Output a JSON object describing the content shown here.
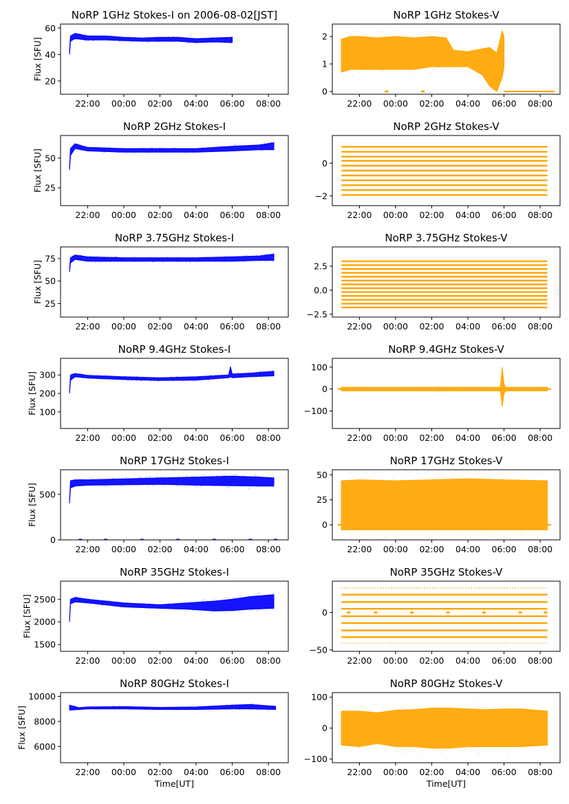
{
  "colors": {
    "stokes_i": "#0000ff",
    "stokes_v": "#ffa500",
    "frame": "#000000"
  },
  "chart_data": [
    {
      "id": "i1",
      "type": "scatter",
      "title": "NoRP 1GHz Stokes-I on 2006-08-02[JST]",
      "ylabel": "Flux [SFU]",
      "xlabel": "",
      "xlim": [
        20.5,
        33.1
      ],
      "ylim": [
        10,
        63
      ],
      "yticks": [
        20,
        40,
        60
      ],
      "xticks": [
        {
          "v": 22,
          "label": "22:00"
        },
        {
          "v": 24,
          "label": "00:00"
        },
        {
          "v": 26,
          "label": "02:00"
        },
        {
          "v": 28,
          "label": "04:00"
        },
        {
          "v": 30,
          "label": "06:00"
        },
        {
          "v": 32,
          "label": "08:00"
        }
      ],
      "x": [
        21.0,
        21.05,
        21.3,
        22,
        23,
        24,
        25,
        26,
        27,
        28,
        29,
        30.0
      ],
      "lower": [
        40,
        50,
        52,
        51,
        51,
        50.5,
        50,
        50,
        50,
        49,
        49.5,
        49
      ],
      "upper": [
        44,
        54,
        56,
        54,
        54,
        53,
        52.5,
        53,
        53,
        52,
        52.5,
        53
      ]
    },
    {
      "id": "v1",
      "type": "scatter",
      "title": "NoRP 1GHz Stokes-V",
      "ylabel": "",
      "xlabel": "",
      "xlim": [
        20.5,
        33.1
      ],
      "ylim": [
        -0.1,
        2.45
      ],
      "yticks": [
        0,
        1,
        2
      ],
      "xticks": [
        {
          "v": 22,
          "label": "22:00"
        },
        {
          "v": 24,
          "label": "00:00"
        },
        {
          "v": 26,
          "label": "02:00"
        },
        {
          "v": 28,
          "label": "04:00"
        },
        {
          "v": 30,
          "label": "06:00"
        },
        {
          "v": 32,
          "label": "08:00"
        }
      ],
      "x": [
        21.0,
        21.5,
        22,
        23,
        24,
        25,
        26,
        26.8,
        27.2,
        28,
        28.8,
        29.2,
        29.6,
        29.9,
        30.0
      ],
      "lower": [
        0.7,
        0.8,
        0.8,
        0.8,
        0.8,
        0.8,
        0.9,
        0.9,
        0.9,
        0.9,
        0.6,
        0.2,
        0.0,
        0.5,
        0.9
      ],
      "upper": [
        1.9,
        2.0,
        2.0,
        1.95,
        2.0,
        1.95,
        2.0,
        1.95,
        1.5,
        1.45,
        1.55,
        1.6,
        1.4,
        2.2,
        2.0
      ],
      "flat": [
        {
          "x0": 30.0,
          "x1": 32.8,
          "y": 0
        }
      ],
      "marks": [
        {
          "x": 23.5,
          "y": 0
        },
        {
          "x": 25.5,
          "y": 0
        }
      ]
    },
    {
      "id": "i2",
      "type": "scatter",
      "title": "NoRP 2GHz Stokes-I",
      "ylabel": "Flux [SFU]",
      "xlabel": "",
      "xlim": [
        20.5,
        33.1
      ],
      "ylim": [
        10,
        69
      ],
      "yticks": [
        25,
        50
      ],
      "xticks": [
        {
          "v": 22,
          "label": "22:00"
        },
        {
          "v": 24,
          "label": "00:00"
        },
        {
          "v": 26,
          "label": "02:00"
        },
        {
          "v": 28,
          "label": "04:00"
        },
        {
          "v": 30,
          "label": "06:00"
        },
        {
          "v": 32,
          "label": "08:00"
        }
      ],
      "x": [
        21.0,
        21.05,
        21.3,
        22,
        24,
        26,
        28,
        30,
        31.5,
        32.3
      ],
      "lower": [
        40,
        52,
        58,
        56,
        55,
        55,
        55,
        56,
        57,
        57
      ],
      "upper": [
        44,
        58,
        62,
        59,
        58,
        58,
        58,
        60,
        61,
        63
      ]
    },
    {
      "id": "v2",
      "type": "scatter",
      "title": "NoRP 2GHz Stokes-V",
      "ylabel": "",
      "xlabel": "",
      "xlim": [
        20.5,
        33.1
      ],
      "ylim": [
        -2.6,
        1.7
      ],
      "yticks": [
        -2,
        0
      ],
      "xticks": [
        {
          "v": 22,
          "label": "22:00"
        },
        {
          "v": 24,
          "label": "00:00"
        },
        {
          "v": 26,
          "label": "02:00"
        },
        {
          "v": 28,
          "label": "04:00"
        },
        {
          "v": 30,
          "label": "06:00"
        },
        {
          "v": 32,
          "label": "08:00"
        }
      ],
      "bands": [
        1.0,
        0.7,
        0.4,
        0.15,
        -0.15,
        -0.45,
        -0.75,
        -1.05,
        -1.35,
        -1.65,
        -1.95
      ],
      "band_x": [
        21.0,
        32.4
      ]
    },
    {
      "id": "i3",
      "type": "scatter",
      "title": "NoRP 3.75GHz Stokes-I",
      "ylabel": "Flux [SFU]",
      "xlabel": "",
      "xlim": [
        20.5,
        33.1
      ],
      "ylim": [
        10,
        88
      ],
      "yticks": [
        25,
        50,
        75
      ],
      "xticks": [
        {
          "v": 22,
          "label": "22:00"
        },
        {
          "v": 24,
          "label": "00:00"
        },
        {
          "v": 26,
          "label": "02:00"
        },
        {
          "v": 28,
          "label": "04:00"
        },
        {
          "v": 30,
          "label": "06:00"
        },
        {
          "v": 32,
          "label": "08:00"
        }
      ],
      "x": [
        21.0,
        21.05,
        21.3,
        22,
        24,
        26,
        28,
        30,
        31.5,
        32.3
      ],
      "lower": [
        60,
        70,
        74,
        72,
        72,
        72,
        72,
        72,
        73,
        73
      ],
      "upper": [
        64,
        76,
        79,
        77,
        76,
        76,
        76,
        77,
        78,
        80
      ]
    },
    {
      "id": "v3",
      "type": "scatter",
      "title": "NoRP 3.75GHz Stokes-V",
      "ylabel": "",
      "xlabel": "",
      "xlim": [
        20.5,
        33.1
      ],
      "ylim": [
        -2.8,
        4.5
      ],
      "yticks": [
        -2.5,
        0.0,
        2.5
      ],
      "xticks": [
        {
          "v": 22,
          "label": "22:00"
        },
        {
          "v": 24,
          "label": "00:00"
        },
        {
          "v": 26,
          "label": "02:00"
        },
        {
          "v": 28,
          "label": "04:00"
        },
        {
          "v": 30,
          "label": "06:00"
        },
        {
          "v": 32,
          "label": "08:00"
        }
      ],
      "bands": [
        3.0,
        2.6,
        2.2,
        1.8,
        1.4,
        1.0,
        0.6,
        0.2,
        -0.2,
        -0.6,
        -1.0,
        -1.4,
        -1.8
      ],
      "band_x": [
        21.0,
        32.4
      ]
    },
    {
      "id": "i4",
      "type": "scatter",
      "title": "NoRP 9.4GHz Stokes-I",
      "ylabel": "Flux [SFU]",
      "xlabel": "",
      "xlim": [
        20.5,
        33.1
      ],
      "ylim": [
        10,
        390
      ],
      "yticks": [
        100,
        200,
        300
      ],
      "xticks": [
        {
          "v": 22,
          "label": "22:00"
        },
        {
          "v": 24,
          "label": "00:00"
        },
        {
          "v": 26,
          "label": "02:00"
        },
        {
          "v": 28,
          "label": "04:00"
        },
        {
          "v": 30,
          "label": "06:00"
        },
        {
          "v": 32,
          "label": "08:00"
        }
      ],
      "x": [
        21.0,
        21.05,
        21.3,
        22,
        24,
        26,
        28,
        29.8,
        29.9,
        30.0,
        31,
        32.3
      ],
      "lower": [
        200,
        270,
        290,
        283,
        275,
        270,
        272,
        285,
        290,
        285,
        290,
        295
      ],
      "upper": [
        215,
        300,
        308,
        298,
        290,
        285,
        290,
        300,
        345,
        305,
        310,
        320
      ]
    },
    {
      "id": "v4",
      "type": "scatter",
      "title": "NoRP 9.4GHz Stokes-V",
      "ylabel": "",
      "xlabel": "",
      "xlim": [
        20.5,
        33.1
      ],
      "ylim": [
        -180,
        140
      ],
      "yticks": [
        -100,
        0,
        100
      ],
      "xticks": [
        {
          "v": 22,
          "label": "22:00"
        },
        {
          "v": 24,
          "label": "00:00"
        },
        {
          "v": 26,
          "label": "02:00"
        },
        {
          "v": 28,
          "label": "04:00"
        },
        {
          "v": 30,
          "label": "06:00"
        },
        {
          "v": 32,
          "label": "08:00"
        }
      ],
      "x": [
        21.0,
        22,
        24,
        26,
        28,
        29.8,
        29.9,
        30.0,
        30.1,
        31,
        32.4
      ],
      "lower": [
        -8,
        -8,
        -8,
        -8,
        -8,
        -8,
        -80,
        -20,
        -8,
        -8,
        -8
      ],
      "upper": [
        8,
        8,
        8,
        8,
        8,
        8,
        100,
        20,
        8,
        8,
        8
      ],
      "flat": [
        {
          "x0": 20.8,
          "x1": 21.0,
          "y": 0
        },
        {
          "x0": 32.4,
          "x1": 32.6,
          "y": 0
        }
      ]
    },
    {
      "id": "i5",
      "type": "scatter",
      "title": "NoRP 17GHz Stokes-I",
      "ylabel": "Flux [SFU]",
      "xlabel": "",
      "xlim": [
        20.5,
        33.1
      ],
      "ylim": [
        0,
        770
      ],
      "yticks": [
        0,
        500
      ],
      "xticks": [
        {
          "v": 22,
          "label": "22:00"
        },
        {
          "v": 24,
          "label": "00:00"
        },
        {
          "v": 26,
          "label": "02:00"
        },
        {
          "v": 28,
          "label": "04:00"
        },
        {
          "v": 30,
          "label": "06:00"
        },
        {
          "v": 32,
          "label": "08:00"
        }
      ],
      "x": [
        21.0,
        21.05,
        21.3,
        22,
        24,
        26,
        28,
        30,
        31.5,
        32.3
      ],
      "lower": [
        400,
        570,
        590,
        600,
        605,
        610,
        600,
        595,
        590,
        590
      ],
      "upper": [
        450,
        650,
        660,
        660,
        670,
        680,
        690,
        700,
        690,
        680
      ],
      "marks": [
        {
          "x": 21.6,
          "y": 0
        },
        {
          "x": 23.0,
          "y": 0
        },
        {
          "x": 25.0,
          "y": 0
        },
        {
          "x": 27.0,
          "y": 0
        },
        {
          "x": 29.0,
          "y": 0
        },
        {
          "x": 31.0,
          "y": 0
        },
        {
          "x": 32.4,
          "y": 0
        }
      ]
    },
    {
      "id": "v5",
      "type": "scatter",
      "title": "NoRP 17GHz Stokes-V",
      "ylabel": "",
      "xlabel": "",
      "xlim": [
        20.5,
        33.1
      ],
      "ylim": [
        -15,
        55
      ],
      "yticks": [
        0,
        25,
        50
      ],
      "xticks": [
        {
          "v": 22,
          "label": "22:00"
        },
        {
          "v": 24,
          "label": "00:00"
        },
        {
          "v": 26,
          "label": "02:00"
        },
        {
          "v": 28,
          "label": "04:00"
        },
        {
          "v": 30,
          "label": "06:00"
        },
        {
          "v": 32,
          "label": "08:00"
        }
      ],
      "x": [
        21.0,
        22,
        24,
        26,
        28,
        30,
        32.4
      ],
      "lower": [
        -5,
        -5,
        -5,
        -5,
        -5,
        -5,
        -5
      ],
      "upper": [
        44,
        45,
        44,
        45,
        46,
        45,
        44
      ],
      "flat": [
        {
          "x0": 20.8,
          "x1": 21.0,
          "y": 0
        },
        {
          "x0": 32.4,
          "x1": 32.6,
          "y": 0
        }
      ]
    },
    {
      "id": "i6",
      "type": "scatter",
      "title": "NoRP 35GHz Stokes-I",
      "ylabel": "Flux [SFU]",
      "xlabel": "",
      "xlim": [
        20.5,
        33.1
      ],
      "ylim": [
        1350,
        2900
      ],
      "yticks": [
        1500,
        2000,
        2500
      ],
      "xticks": [
        {
          "v": 22,
          "label": "22:00"
        },
        {
          "v": 24,
          "label": "00:00"
        },
        {
          "v": 26,
          "label": "02:00"
        },
        {
          "v": 28,
          "label": "04:00"
        },
        {
          "v": 30,
          "label": "06:00"
        },
        {
          "v": 32,
          "label": "08:00"
        }
      ],
      "x": [
        21.0,
        21.05,
        21.3,
        22,
        24,
        26,
        27.5,
        29,
        30,
        31,
        32.3
      ],
      "lower": [
        2000,
        2400,
        2440,
        2420,
        2330,
        2300,
        2280,
        2240,
        2250,
        2280,
        2300
      ],
      "upper": [
        2080,
        2500,
        2540,
        2500,
        2420,
        2380,
        2420,
        2460,
        2500,
        2560,
        2600
      ]
    },
    {
      "id": "v6",
      "type": "scatter",
      "title": "NoRP 35GHz Stokes-V",
      "ylabel": "",
      "xlabel": "",
      "xlim": [
        20.5,
        33.1
      ],
      "ylim": [
        -52,
        42
      ],
      "yticks": [
        -50,
        0
      ],
      "xticks": [
        {
          "v": 22,
          "label": "22:00"
        },
        {
          "v": 24,
          "label": "00:00"
        },
        {
          "v": 26,
          "label": "02:00"
        },
        {
          "v": 28,
          "label": "04:00"
        },
        {
          "v": 30,
          "label": "06:00"
        },
        {
          "v": 32,
          "label": "08:00"
        }
      ],
      "bands": [
        24,
        14,
        5,
        -5,
        -14,
        -24,
        -33
      ],
      "band_x": [
        21.0,
        32.4
      ],
      "sparse_bands": [
        33,
        -41
      ],
      "marks": [
        {
          "x": 21.4,
          "y": 0
        },
        {
          "x": 22.9,
          "y": 0
        },
        {
          "x": 24.9,
          "y": 0
        },
        {
          "x": 26.9,
          "y": 0
        },
        {
          "x": 28.9,
          "y": 0
        },
        {
          "x": 30.9,
          "y": 0
        },
        {
          "x": 32.3,
          "y": 0
        }
      ]
    },
    {
      "id": "i7",
      "type": "scatter",
      "title": "NoRP 80GHz Stokes-I",
      "ylabel": "Flux [SFU]",
      "xlabel": "Time[UT]",
      "xlim": [
        20.5,
        33.1
      ],
      "ylim": [
        4700,
        10300
      ],
      "yticks": [
        6000,
        8000,
        10000
      ],
      "xticks": [
        {
          "v": 22,
          "label": "22:00"
        },
        {
          "v": 24,
          "label": "00:00"
        },
        {
          "v": 26,
          "label": "02:00"
        },
        {
          "v": 28,
          "label": "04:00"
        },
        {
          "v": 30,
          "label": "06:00"
        },
        {
          "v": 32,
          "label": "08:00"
        }
      ],
      "x": [
        21.0,
        21.5,
        22,
        24,
        26,
        28,
        30,
        31,
        32.4
      ],
      "lower": [
        8900,
        8950,
        9000,
        9000,
        8950,
        8950,
        9000,
        9000,
        8950
      ],
      "upper": [
        9300,
        9100,
        9150,
        9180,
        9120,
        9150,
        9300,
        9350,
        9200
      ]
    },
    {
      "id": "v7",
      "type": "scatter",
      "title": "NoRP 80GHz Stokes-V",
      "ylabel": "",
      "xlabel": "Time[UT]",
      "xlim": [
        20.5,
        33.1
      ],
      "ylim": [
        -112,
        115
      ],
      "yticks": [
        -100,
        0,
        100
      ],
      "xticks": [
        {
          "v": 22,
          "label": "22:00"
        },
        {
          "v": 24,
          "label": "00:00"
        },
        {
          "v": 26,
          "label": "02:00"
        },
        {
          "v": 28,
          "label": "04:00"
        },
        {
          "v": 30,
          "label": "06:00"
        },
        {
          "v": 32,
          "label": "08:00"
        }
      ],
      "x": [
        21.0,
        22,
        23,
        24,
        25,
        26,
        27,
        28,
        29,
        30,
        31,
        32.4
      ],
      "lower": [
        -55,
        -60,
        -50,
        -60,
        -60,
        -65,
        -65,
        -60,
        -60,
        -60,
        -60,
        -55
      ],
      "upper": [
        55,
        55,
        50,
        58,
        60,
        65,
        65,
        62,
        60,
        62,
        62,
        55
      ]
    }
  ]
}
